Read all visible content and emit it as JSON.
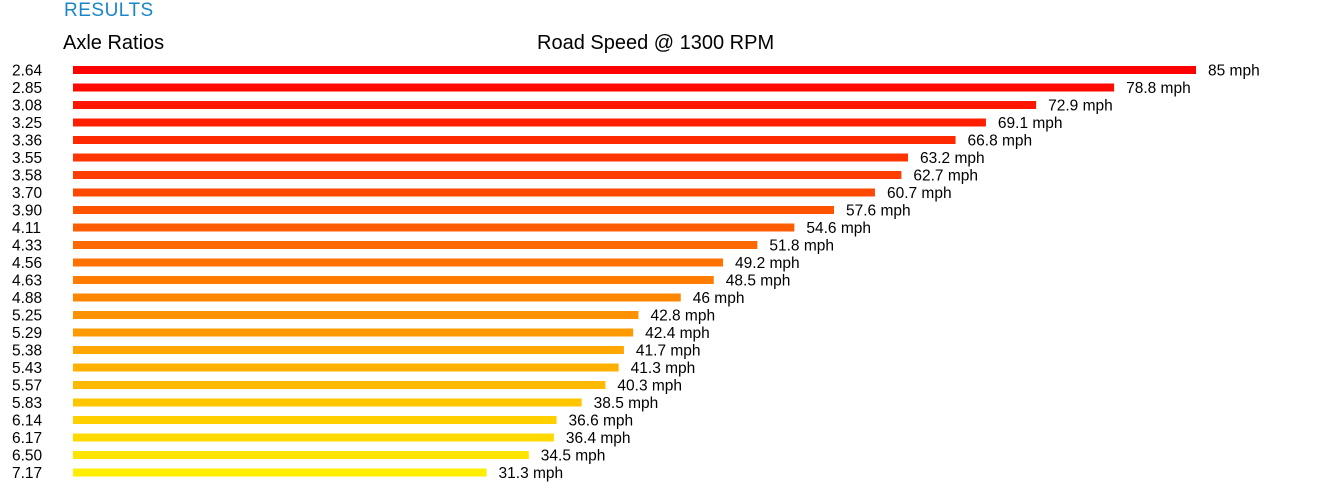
{
  "header": {
    "section_title": "RESULTS",
    "left_heading": "Axle Ratios",
    "center_heading": "Road Speed @ 1300 RPM"
  },
  "chart_data": {
    "type": "bar",
    "orientation": "horizontal",
    "title": "Road Speed @ 1300 RPM",
    "xlabel": "",
    "ylabel": "Axle Ratios",
    "unit": "mph",
    "categories": [
      "2.64",
      "2.85",
      "3.08",
      "3.25",
      "3.36",
      "3.55",
      "3.58",
      "3.70",
      "3.90",
      "4.11",
      "4.33",
      "4.56",
      "4.63",
      "4.88",
      "5.25",
      "5.29",
      "5.38",
      "5.43",
      "5.57",
      "5.83",
      "6.14",
      "6.17",
      "6.50",
      "7.17"
    ],
    "values": [
      85,
      78.8,
      72.9,
      69.1,
      66.8,
      63.2,
      62.7,
      60.7,
      57.6,
      54.6,
      51.8,
      49.2,
      48.5,
      46,
      42.8,
      42.4,
      41.7,
      41.3,
      40.3,
      38.5,
      36.6,
      36.4,
      34.5,
      31.3
    ],
    "value_labels": [
      "85 mph",
      "78.8 mph",
      "72.9 mph",
      "69.1 mph",
      "66.8 mph",
      "63.2 mph",
      "62.7 mph",
      "60.7 mph",
      "57.6 mph",
      "54.6 mph",
      "51.8 mph",
      "49.2 mph",
      "48.5 mph",
      "46 mph",
      "42.8 mph",
      "42.4 mph",
      "41.7 mph",
      "41.3 mph",
      "40.3 mph",
      "38.5 mph",
      "36.6 mph",
      "36.4 mph",
      "34.5 mph",
      "31.3 mph"
    ],
    "xlim": [
      0,
      85
    ],
    "grid": false,
    "colors": {
      "top": "#ff0000",
      "bottom": "#ffee00"
    }
  }
}
